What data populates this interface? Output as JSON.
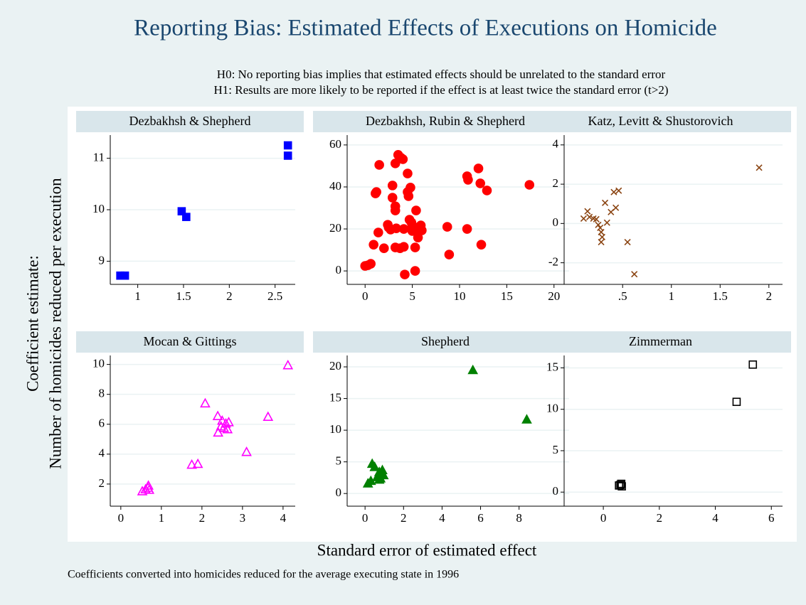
{
  "title": "Reporting Bias: Estimated Effects of Executions on Homicide",
  "subtitle": [
    "H0: No reporting bias implies that estimated effects should be unrelated to the standard error",
    "H1: Results are more likely to be reported if the effect is at least twice the standard error (t>2)"
  ],
  "ytitle": [
    "Coefficient estimate:",
    "Number of homicides reduced per execution"
  ],
  "xtitle": "Standard error of estimated effect",
  "note": "Coefficients converted into homicides reduced for the average executing state in 1996",
  "chart_data": [
    {
      "type": "scatter",
      "title": "Dezbakhsh & Shepherd",
      "color": "#0000ff",
      "marker": "square",
      "filled": true,
      "grid": true,
      "x": [
        0.81,
        0.86,
        1.48,
        1.53,
        2.64,
        2.64
      ],
      "y": [
        8.72,
        8.72,
        9.97,
        9.86,
        11.25,
        11.05
      ],
      "xlim": [
        0.7,
        2.72
      ],
      "ylim": [
        8.55,
        11.45
      ],
      "xticks": [
        1,
        1.5,
        2,
        2.5
      ],
      "yticks": [
        9,
        10,
        11
      ]
    },
    {
      "type": "scatter",
      "title": "Dezbakhsh, Rubin & Shepherd",
      "color": "#ff0000",
      "marker": "circle",
      "filled": true,
      "grid": true,
      "x": [
        0,
        0.3,
        0.6,
        0.9,
        1.1,
        1.2,
        1.5,
        1.4,
        2.0,
        2.4,
        2.5,
        2.7,
        2.9,
        2.9,
        3.2,
        3.2,
        3.2,
        3.2,
        3.3,
        3.5,
        3.8,
        3.7,
        4.0,
        4.1,
        4.2,
        4.1,
        4.5,
        4.5,
        4.6,
        4.8,
        4.7,
        4.9,
        5.0,
        5.0,
        5.4,
        5.5,
        5.6,
        5.3,
        5.9,
        6.0,
        5.3,
        8.7,
        8.9,
        10.8,
        10.9,
        10.8,
        12.0,
        12.2,
        12.3,
        12.9,
        17.4
      ],
      "y": [
        2.4,
        2.7,
        3.4,
        12.5,
        36.9,
        37.6,
        50.5,
        18.3,
        10.8,
        22,
        20.7,
        19.7,
        40.7,
        34.9,
        30.8,
        28.8,
        51.2,
        11.2,
        20.3,
        55.3,
        53.9,
        10.8,
        53.2,
        20.0,
        -1.7,
        11.5,
        46.4,
        37.6,
        35.6,
        39.7,
        24.4,
        23.1,
        21.7,
        19.0,
        28.8,
        20.3,
        15.9,
        0,
        21.7,
        19.3,
        11.2,
        21.0,
        7.8,
        45.1,
        43.4,
        20.0,
        48.8,
        41.7,
        12.5,
        38.3,
        41.0
      ],
      "xlim": [
        -1.9,
        21.6
      ],
      "ylim": [
        -6.4,
        64.7
      ],
      "xticks": [
        0,
        5,
        10,
        15,
        20
      ],
      "yticks": [
        0,
        20,
        40,
        60
      ]
    },
    {
      "type": "scatter",
      "title": "Katz, Levitt & Shustorovich",
      "color": "#8b4513",
      "marker": "x",
      "filled": false,
      "grid": true,
      "x": [
        0.1,
        0.14,
        0.16,
        0.2,
        0.23,
        0.25,
        0.27,
        0.28,
        0.29,
        0.28,
        0.32,
        0.34,
        0.38,
        0.41,
        0.43,
        0.46,
        0.55,
        0.62,
        1.9
      ],
      "y": [
        0.25,
        0.62,
        0.33,
        0.25,
        0.22,
        -0.07,
        -0.22,
        -0.44,
        -0.69,
        -0.95,
        1.05,
        0.04,
        0.58,
        1.6,
        0.8,
        1.67,
        -0.95,
        -2.58,
        2.84
      ],
      "xlim": [
        -0.1,
        2.14
      ],
      "ylim": [
        -3.1,
        4.5
      ],
      "xticks": [
        {
          "value": 0.5,
          "label": ".5"
        },
        1,
        1.5,
        2
      ],
      "yticks": [
        -2,
        0,
        2,
        4
      ]
    },
    {
      "type": "scatter",
      "title": "Mocan & Gittings",
      "color": "#ff00ff",
      "marker": "triangle",
      "filled": false,
      "grid": true,
      "x": [
        0.53,
        0.61,
        0.67,
        0.68,
        0.7,
        1.75,
        1.9,
        2.08,
        2.39,
        2.4,
        2.47,
        2.5,
        2.54,
        2.59,
        2.63,
        2.66,
        3.1,
        3.63,
        4.12
      ],
      "y": [
        1.52,
        1.65,
        1.76,
        1.9,
        1.62,
        3.3,
        3.35,
        7.4,
        6.55,
        5.45,
        5.86,
        6.24,
        5.76,
        6.05,
        5.67,
        6.14,
        4.15,
        6.5,
        9.95
      ],
      "xlim": [
        -0.26,
        4.3
      ],
      "ylim": [
        0.52,
        10.6
      ],
      "xticks": [
        0,
        1,
        2,
        3,
        4
      ],
      "yticks": [
        2,
        4,
        6,
        8,
        10
      ]
    },
    {
      "type": "scatter",
      "title": "Shepherd",
      "color": "#008000",
      "marker": "triangle",
      "filled": true,
      "grid": true,
      "x": [
        0.15,
        0.3,
        0.37,
        0.5,
        0.63,
        0.74,
        0.8,
        0.9,
        0.96,
        0.74,
        5.6,
        8.4
      ],
      "y": [
        1.6,
        2.0,
        4.7,
        4.2,
        2.6,
        3.4,
        2.4,
        3.7,
        2.9,
        2.2,
        19.5,
        11.7
      ],
      "xlim": [
        -0.93,
        10.6
      ],
      "ylim": [
        -2.0,
        21.8
      ],
      "xticks": [
        0,
        2,
        4,
        6,
        8
      ],
      "yticks": [
        0,
        5,
        10,
        15,
        20
      ]
    },
    {
      "type": "scatter",
      "title": "Zimmerman",
      "color": "#000000",
      "marker": "square",
      "filled": false,
      "grid": true,
      "x": [
        5.34,
        4.76,
        0.61,
        0.66,
        0.56,
        0.64
      ],
      "y": [
        15.4,
        10.9,
        0.86,
        0.7,
        0.8,
        1.0
      ],
      "xlim": [
        -1.4,
        6.4
      ],
      "ylim": [
        -1.7,
        16.5
      ],
      "xticks": [
        0,
        2,
        4,
        6
      ],
      "yticks": [
        0,
        5,
        10,
        15
      ]
    }
  ]
}
